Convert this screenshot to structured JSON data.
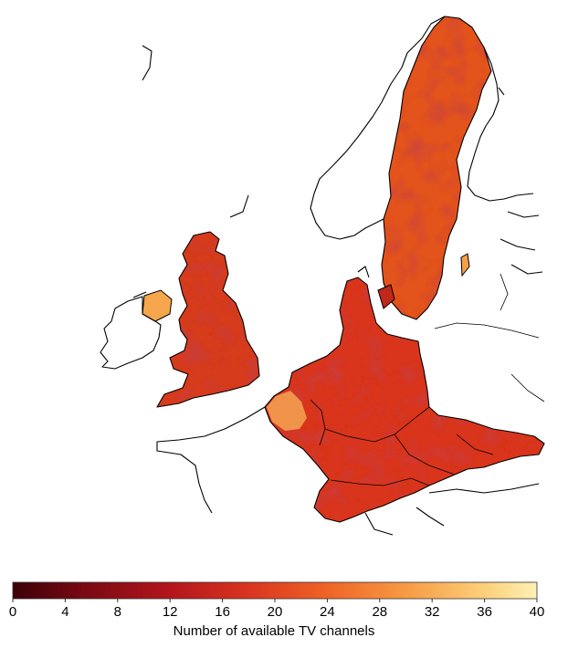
{
  "map": {
    "regions": [
      "sweden",
      "great-britain",
      "ireland",
      "central-europe",
      "denmark",
      "finland",
      "norway"
    ]
  },
  "colorbar": {
    "min": 0,
    "max": 40,
    "ticks": [
      "0",
      "4",
      "8",
      "12",
      "16",
      "20",
      "24",
      "28",
      "32",
      "36",
      "40"
    ],
    "label": "Number of available TV channels",
    "colors": [
      "#3d0008",
      "#7a0a12",
      "#b3151c",
      "#d9341f",
      "#ef6426",
      "#f79a45",
      "#fcd07a",
      "#fef0b5"
    ]
  }
}
